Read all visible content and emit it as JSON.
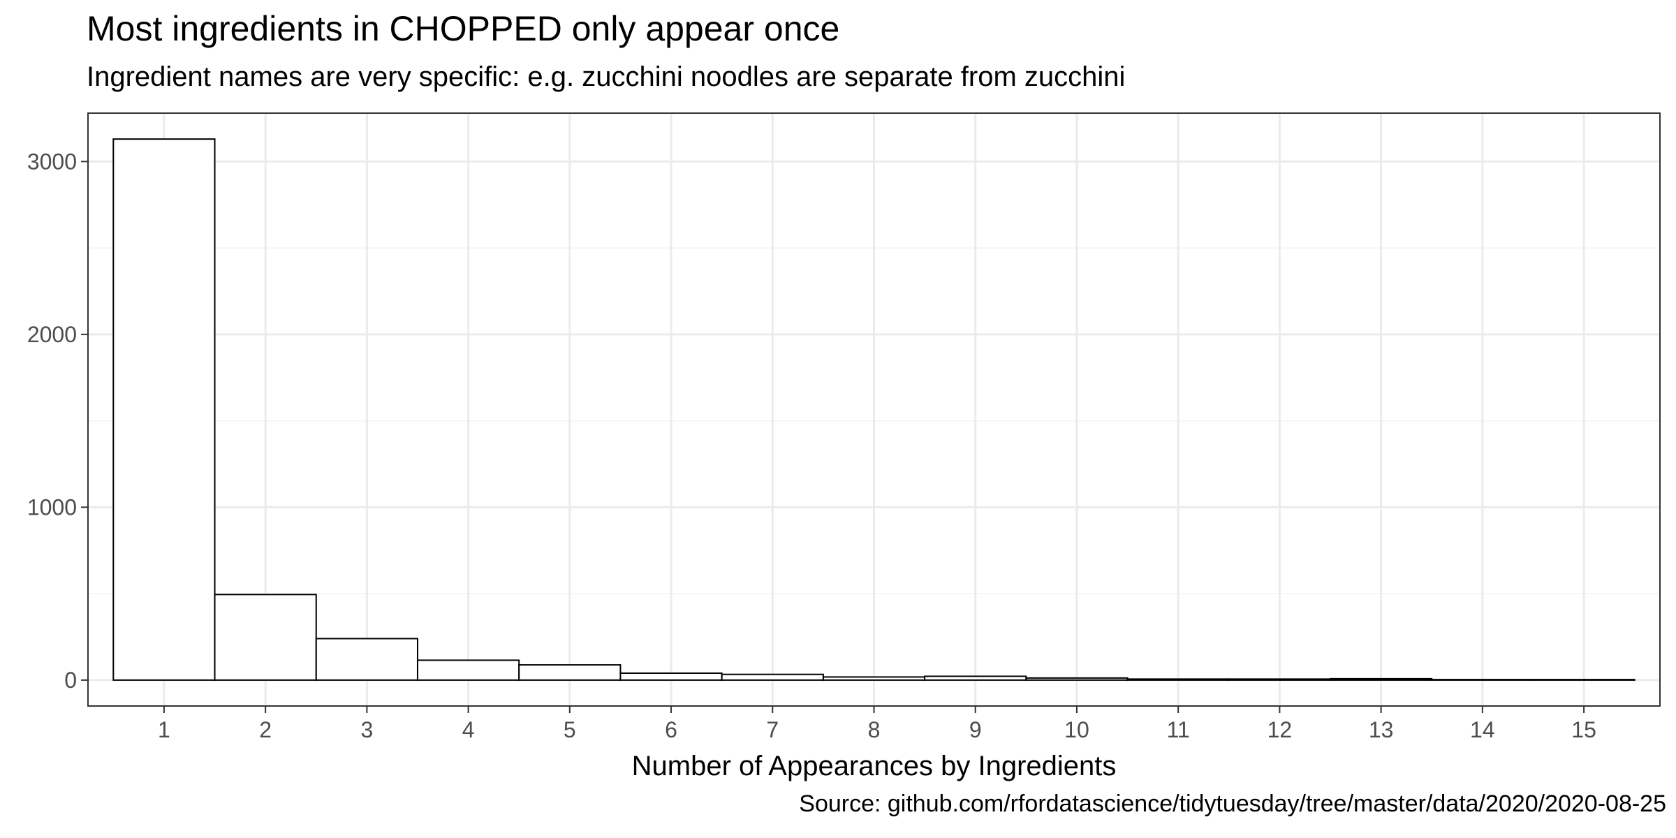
{
  "chart_data": {
    "type": "bar",
    "title": "Most ingredients in CHOPPED only appear once",
    "subtitle": "Ingredient names are very specific: e.g. zucchini noodles are separate from zucchini",
    "caption": "Source: github.com/rfordatascience/tidytuesday/tree/master/data/2020/2020-08-25",
    "xlabel": "Number of Appearances by Ingredients",
    "ylabel": "",
    "categories": [
      "1",
      "2",
      "3",
      "4",
      "5",
      "6",
      "7",
      "8",
      "9",
      "10",
      "11",
      "12",
      "13",
      "14",
      "15"
    ],
    "values": [
      3130,
      495,
      240,
      115,
      88,
      40,
      33,
      18,
      22,
      12,
      6,
      6,
      8,
      3,
      3
    ],
    "ylim": [
      -150,
      3280
    ],
    "y_ticks": [
      0,
      1000,
      2000,
      3000
    ],
    "grid": true,
    "legend": "none",
    "colors": {
      "bar_fill": "#ffffff",
      "bar_stroke": "#000000",
      "grid_major": "#ebebeb",
      "grid_minor": "#f2f2f2",
      "panel_border": "#333333",
      "tick_text": "#4d4d4d"
    }
  }
}
